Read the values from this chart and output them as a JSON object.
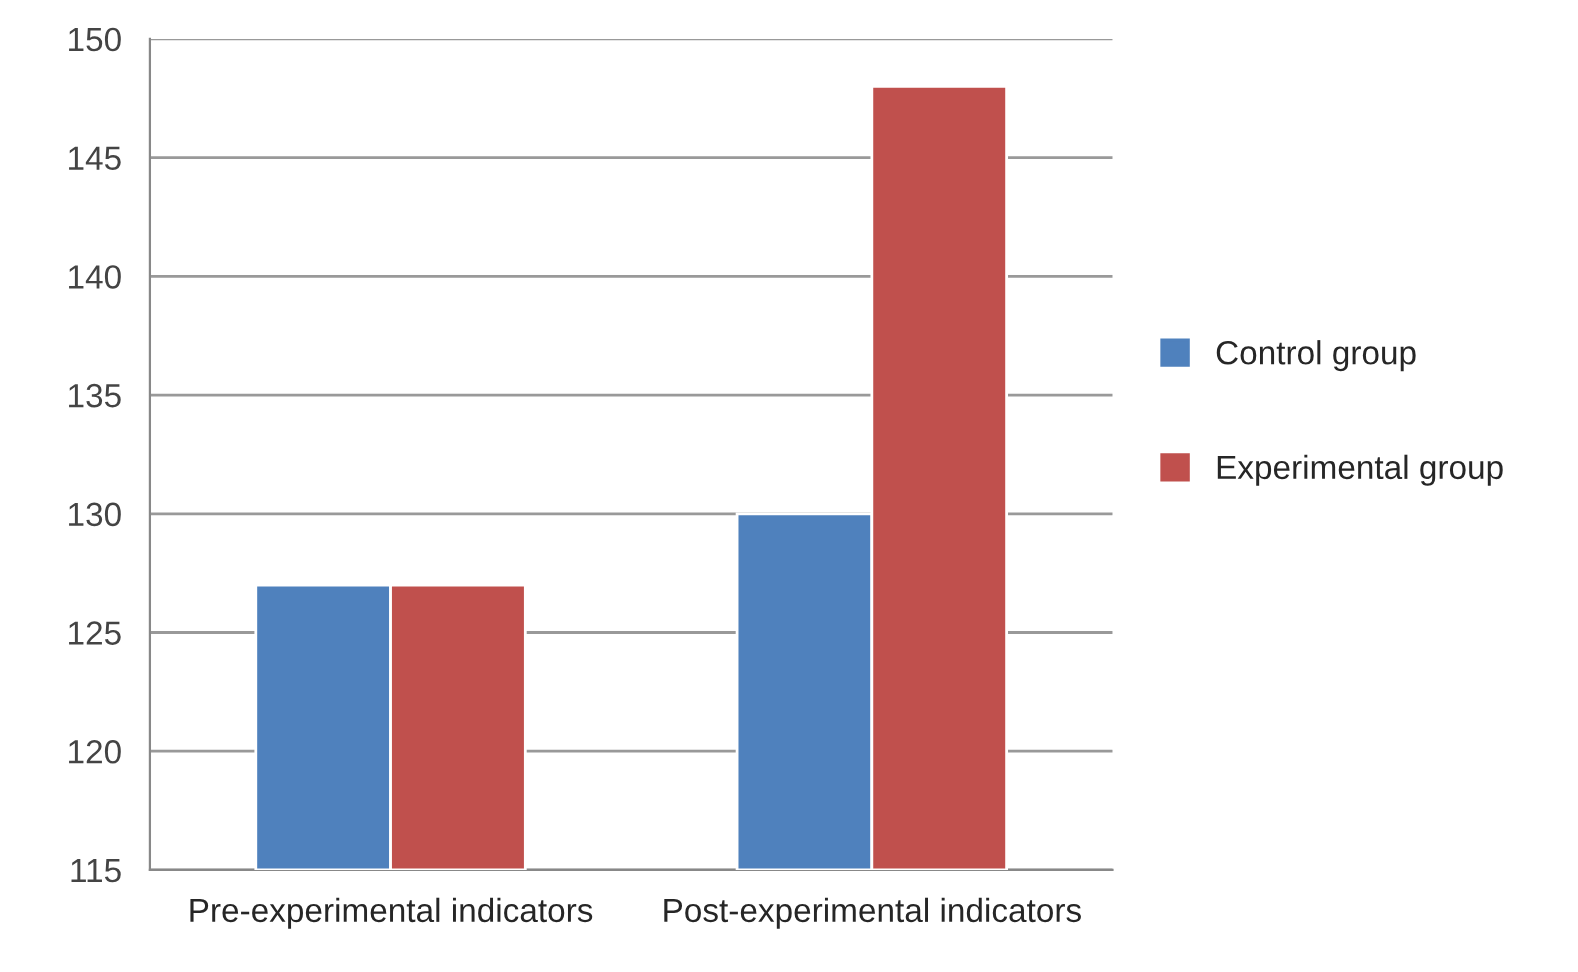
{
  "chart_data": {
    "type": "bar",
    "categories": [
      "Pre-experimental indicators",
      "Post-experimental indicators"
    ],
    "series": [
      {
        "name": "Control group",
        "color": "#4f81bd",
        "values": [
          127,
          130
        ]
      },
      {
        "name": "Experimental group",
        "color": "#c0504d",
        "values": [
          127,
          148
        ]
      }
    ],
    "ylim": [
      115,
      150
    ],
    "yticks": [
      115,
      120,
      125,
      130,
      135,
      140,
      145,
      150
    ],
    "grid": "y",
    "legend": "right"
  }
}
